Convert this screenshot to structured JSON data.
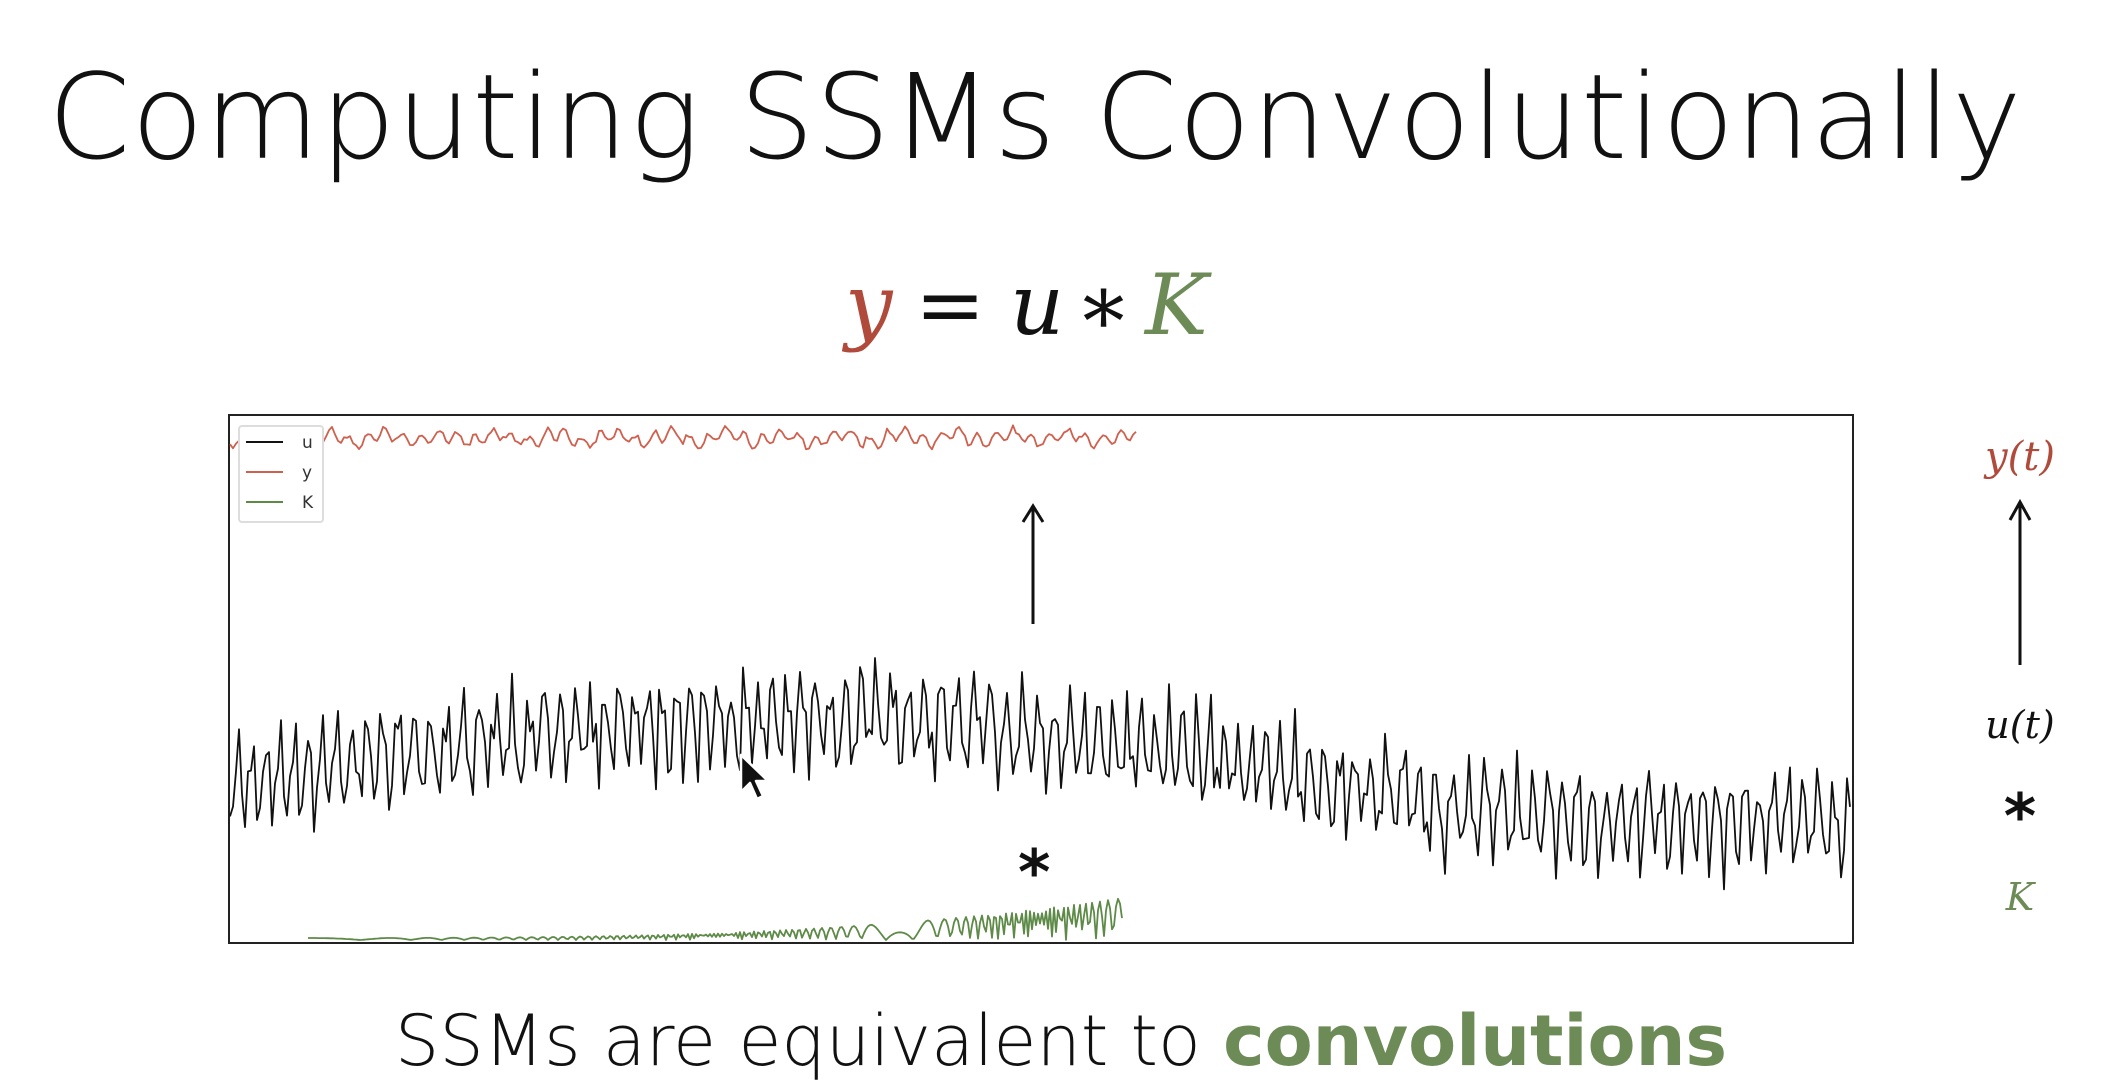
{
  "slide": {
    "title": "Computing SSMs Convolutionally",
    "equation": {
      "y": "y",
      "equals": "=",
      "u": "u",
      "star": "∗",
      "K": "K"
    },
    "legend": {
      "u": "u",
      "y": "y",
      "K": "K"
    },
    "plot_star": "*",
    "side_labels": {
      "y_t": "y(t)",
      "u_t": "u(t)",
      "star": "*",
      "K": "K"
    },
    "caption": {
      "text": "SSMs are equivalent to ",
      "highlight": "convolutions"
    }
  },
  "colors": {
    "u": "#111111",
    "y": "#d0604e",
    "K": "#5e8a48",
    "equation_y": "#b04a3a",
    "equation_K": "#6d8b56",
    "caption_highlight": "#6d8b56"
  }
}
